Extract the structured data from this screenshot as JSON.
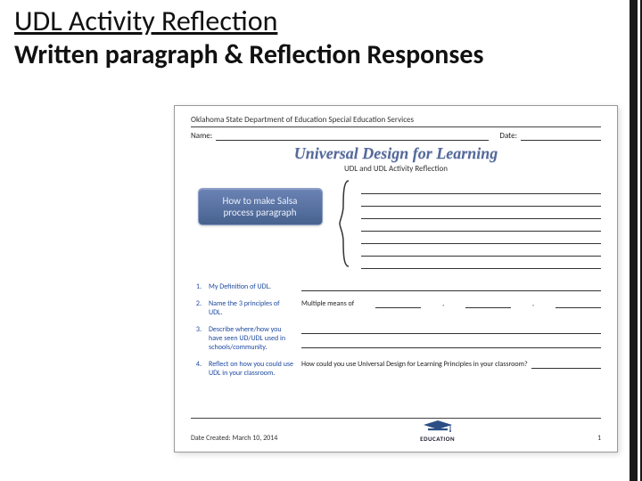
{
  "slide": {
    "title_line1": "UDL Activity Reflection",
    "title_line2": "Written paragraph & Reflection Responses"
  },
  "doc": {
    "department": "Oklahoma State Department of Education Special Education Services",
    "name_label": "Name:",
    "date_label": "Date:",
    "banner_title": "Universal Design for Learning",
    "banner_subtitle": "UDL and UDL Activity Reflection",
    "pill_line1": "How to make Salsa",
    "pill_line2": "process paragraph",
    "writing_line_count": 7,
    "questions": [
      {
        "num": "1.",
        "prompt": "My Definition of UDL.",
        "answer_type": "single"
      },
      {
        "num": "2.",
        "prompt": "Name the 3 principles of UDL.",
        "answer_type": "multi",
        "lead": "Multiple means of"
      },
      {
        "num": "3.",
        "prompt": "Describe where/how you have seen UD/UDL used in schools/community.",
        "answer_type": "double"
      },
      {
        "num": "4.",
        "prompt": "Reflect on how you could use UDL in your classroom.",
        "answer_type": "inline",
        "inline_text": "How could you use Universal Design for Learning Principles in your classroom?"
      }
    ],
    "footer_date": "Date Created: March 10, 2014",
    "footer_page": "1",
    "footer_logo_text": "EDUCATION"
  },
  "colors": {
    "accent": "#1a1a1a",
    "banner": "#556a9a",
    "pill_top": "#6a83b5",
    "pill_bottom": "#48628f",
    "link_blue": "#1e4aa0",
    "cap_blue": "#2b4f85"
  }
}
